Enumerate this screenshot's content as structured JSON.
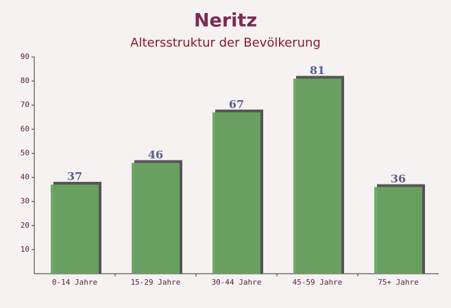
{
  "chart_data": {
    "type": "bar",
    "title": "Neritz",
    "subtitle": "Altersstruktur der Bevölkerung",
    "categories": [
      "0-14 Jahre",
      "15-29 Jahre",
      "30-44 Jahre",
      "45-59 Jahre",
      "75+ Jahre"
    ],
    "values": [
      37,
      46,
      67,
      81,
      36
    ],
    "color": "#6aa462",
    "ylim": [
      0,
      90
    ],
    "yticks": [
      10,
      20,
      30,
      40,
      50,
      60,
      70,
      80,
      90
    ],
    "grid": false
  }
}
